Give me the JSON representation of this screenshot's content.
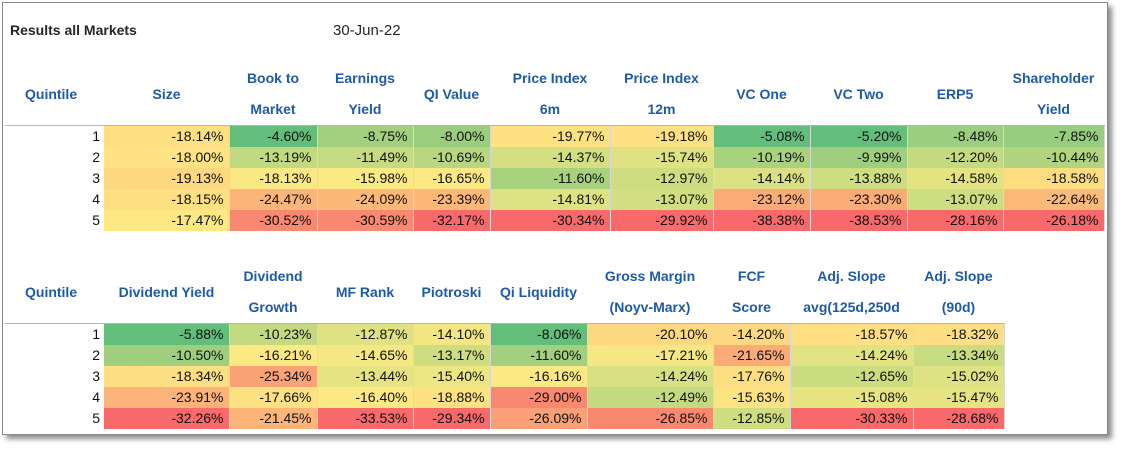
{
  "title": "Results all Markets",
  "date": "30-Jun-22",
  "table1": {
    "headers": [
      {
        "l1": "Quintile",
        "l2": ""
      },
      {
        "l1": "Size",
        "l2": ""
      },
      {
        "l1": "Book to",
        "l2": "Market"
      },
      {
        "l1": "Earnings",
        "l2": "Yield"
      },
      {
        "l1": "QI Value",
        "l2": ""
      },
      {
        "l1": "Price Index",
        "l2": "6m"
      },
      {
        "l1": "Price Index",
        "l2": "12m"
      },
      {
        "l1": "VC One",
        "l2": ""
      },
      {
        "l1": "VC Two",
        "l2": ""
      },
      {
        "l1": "ERP5",
        "l2": ""
      },
      {
        "l1": "Shareholder",
        "l2": "Yield"
      }
    ],
    "rows": [
      {
        "q": "1",
        "v": [
          "-18.14%",
          "-4.60%",
          "-8.75%",
          "-8.00%",
          "-19.77%",
          "-19.18%",
          "-5.08%",
          "-5.20%",
          "-8.48%",
          "-7.85%"
        ],
        "c": [
          "#fee083",
          "#63be7b",
          "#a2d07f",
          "#9acd7e",
          "#fee282",
          "#fee182",
          "#63be7b",
          "#63be7b",
          "#9bce7e",
          "#96cd7e"
        ]
      },
      {
        "q": "2",
        "v": [
          "-18.00%",
          "-13.19%",
          "-11.49%",
          "-10.69%",
          "-14.37%",
          "-15.74%",
          "-10.19%",
          "-9.99%",
          "-12.20%",
          "-10.44%"
        ],
        "c": [
          "#fee283",
          "#c1d980",
          "#c6db81",
          "#b9d780",
          "#d4df81",
          "#dfe282",
          "#a9d27f",
          "#9fcf7e",
          "#c3da80",
          "#b1d47f"
        ]
      },
      {
        "q": "3",
        "v": [
          "-19.13%",
          "-18.13%",
          "-15.98%",
          "-16.65%",
          "-11.60%",
          "-12.97%",
          "-14.14%",
          "-13.88%",
          "-14.58%",
          "-18.58%"
        ],
        "c": [
          "#fed880",
          "#f9e883",
          "#fbe983",
          "#fde983",
          "#a9d27f",
          "#cfdd81",
          "#dbe182",
          "#cfdd81",
          "#e3e382",
          "#fedd81"
        ]
      },
      {
        "q": "4",
        "v": [
          "-18.15%",
          "-24.47%",
          "-24.09%",
          "-23.39%",
          "-14.81%",
          "-13.07%",
          "-23.12%",
          "-23.30%",
          "-13.07%",
          "-22.64%"
        ],
        "c": [
          "#fee083",
          "#fcb579",
          "#fcb879",
          "#fcb779",
          "#dde282",
          "#d1de81",
          "#fbab76",
          "#fbab76",
          "#cddd81",
          "#fcba7a"
        ]
      },
      {
        "q": "5",
        "v": [
          "-17.47%",
          "-30.52%",
          "-30.59%",
          "-32.17%",
          "-30.34%",
          "-29.92%",
          "-38.38%",
          "-38.53%",
          "-28.16%",
          "-26.18%"
        ],
        "c": [
          "#fde983",
          "#f98870",
          "#f98870",
          "#f8696b",
          "#f8696b",
          "#f8696b",
          "#f8696b",
          "#f8696b",
          "#f8696b",
          "#f8696b"
        ]
      }
    ]
  },
  "table2": {
    "headers": [
      {
        "l1": "Quintile",
        "l2": ""
      },
      {
        "l1": "Dividend Yield",
        "l2": ""
      },
      {
        "l1": "Dividend",
        "l2": "Growth"
      },
      {
        "l1": "MF Rank",
        "l2": ""
      },
      {
        "l1": "Piotroski",
        "l2": ""
      },
      {
        "l1": "Qi Liquidity",
        "l2": ""
      },
      {
        "l1": "Gross Margin",
        "l2": "(Noyv-Marx)"
      },
      {
        "l1": "FCF",
        "l2": "Score"
      },
      {
        "l1": "Adj. Slope",
        "l2": "avg(125d,250d"
      },
      {
        "l1": "Adj. Slope",
        "l2": "(90d)"
      }
    ],
    "rows": [
      {
        "q": "1",
        "v": [
          "-5.88%",
          "-10.23%",
          "-12.87%",
          "-14.10%",
          "-8.06%",
          "-20.10%",
          "-14.20%",
          "-18.57%",
          "-18.32%"
        ],
        "c": [
          "#63be7b",
          "#c4da80",
          "#dfe282",
          "#f3e683",
          "#63be7b",
          "#fed880",
          "#fed880",
          "#fee082",
          "#fede82"
        ]
      },
      {
        "q": "2",
        "v": [
          "-10.50%",
          "-16.21%",
          "-14.65%",
          "-13.17%",
          "-11.60%",
          "-17.21%",
          "-21.65%",
          "-14.24%",
          "-13.34%"
        ],
        "c": [
          "#9fcf7e",
          "#fde983",
          "#f5e783",
          "#cfdd81",
          "#a2d07f",
          "#f5e783",
          "#fbab76",
          "#e1e382",
          "#c9dc81"
        ]
      },
      {
        "q": "3",
        "v": [
          "-18.34%",
          "-25.34%",
          "-13.44%",
          "-15.40%",
          "-16.16%",
          "-14.24%",
          "-17.76%",
          "-12.65%",
          "-15.02%"
        ],
        "c": [
          "#fede82",
          "#fba376",
          "#e6e482",
          "#ebe582",
          "#fde983",
          "#d7e082",
          "#fede82",
          "#cbdc81",
          "#dfe282"
        ]
      },
      {
        "q": "4",
        "v": [
          "-23.91%",
          "-17.66%",
          "-16.40%",
          "-18.88%",
          "-29.00%",
          "-12.49%",
          "-15.63%",
          "-15.08%",
          "-15.47%"
        ],
        "c": [
          "#fcb37a",
          "#fee182",
          "#fde983",
          "#fee282",
          "#f98870",
          "#c5da80",
          "#fee383",
          "#e7e482",
          "#e6e482"
        ]
      },
      {
        "q": "5",
        "v": [
          "-32.26%",
          "-21.45%",
          "-33.53%",
          "-29.34%",
          "-26.09%",
          "-26.85%",
          "-12.85%",
          "-30.33%",
          "-28.68%"
        ],
        "c": [
          "#f8696b",
          "#fcb479",
          "#f8696b",
          "#f8696b",
          "#fba076",
          "#f98870",
          "#cfdd81",
          "#f8696b",
          "#f8696b"
        ]
      }
    ]
  }
}
